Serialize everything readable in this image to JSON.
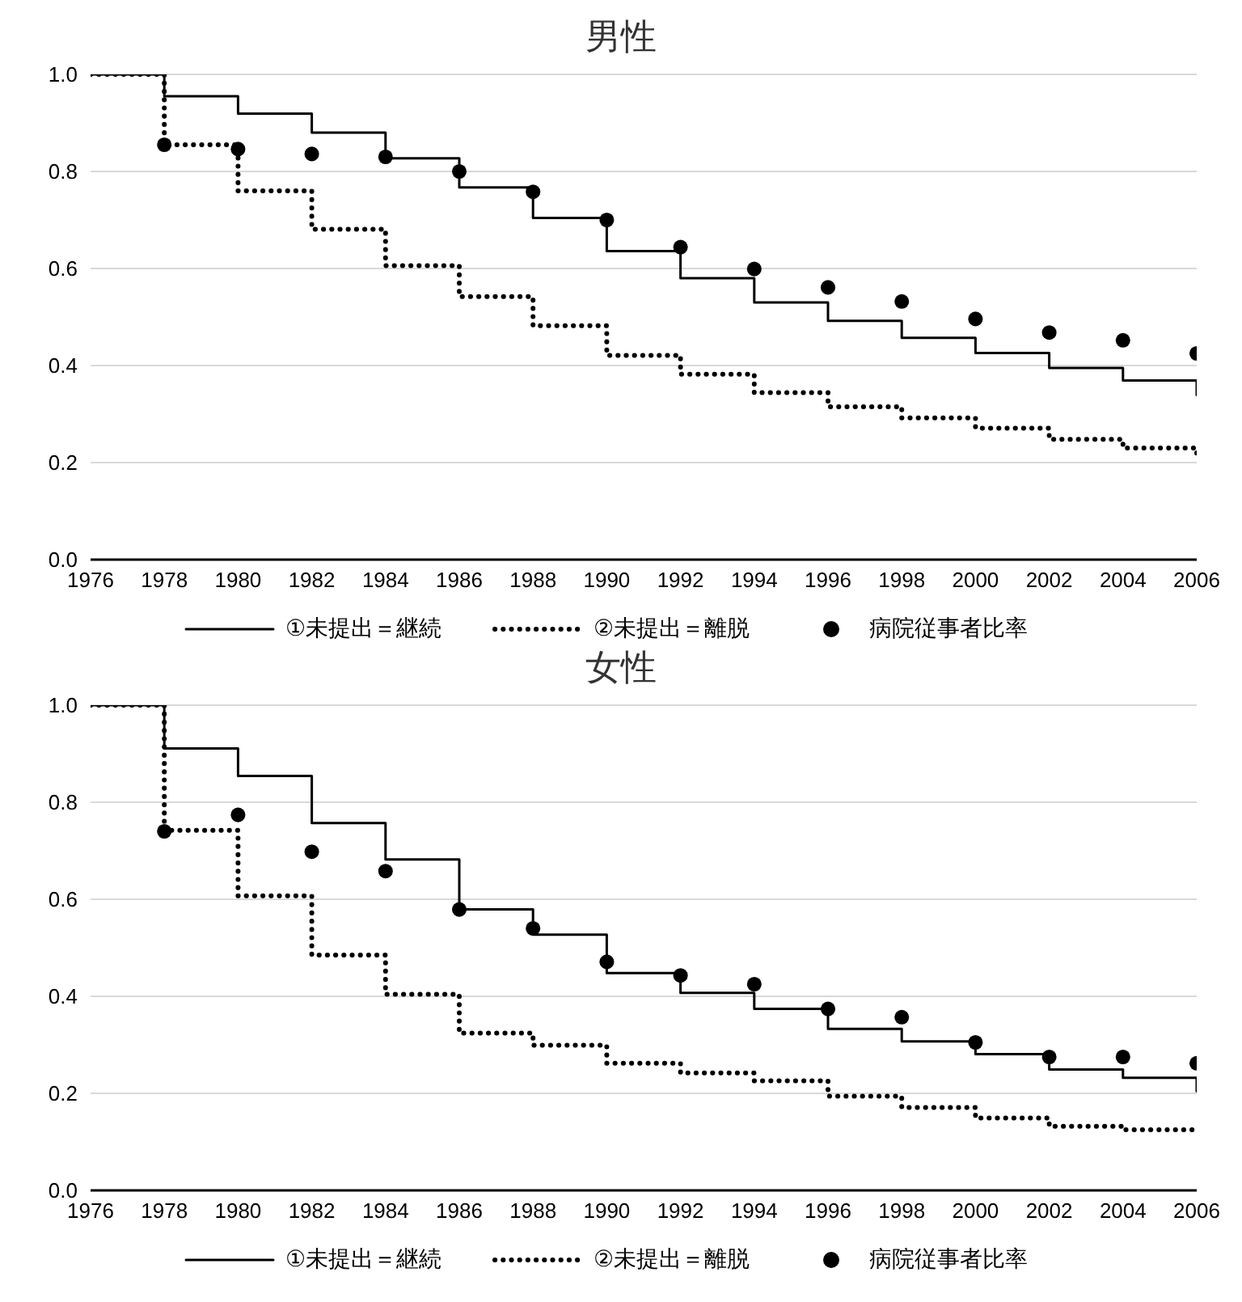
{
  "chart_data": [
    {
      "type": "step",
      "title": "男性",
      "x": [
        1976,
        1978,
        1980,
        1982,
        1984,
        1986,
        1988,
        1990,
        1992,
        1994,
        1996,
        1998,
        2000,
        2002,
        2004,
        2006
      ],
      "series": [
        {
          "name": "①未提出＝継続",
          "color": "#000000",
          "line_style": "solid",
          "values": [
            1.0,
            0.955,
            0.919,
            0.88,
            0.827,
            0.767,
            0.704,
            0.636,
            0.58,
            0.53,
            0.492,
            0.457,
            0.426,
            0.395,
            0.369,
            0.339
          ]
        },
        {
          "name": "②未提出＝離脱",
          "color": "#000000",
          "line_style": "dotted",
          "values": [
            1.0,
            0.855,
            0.76,
            0.681,
            0.606,
            0.542,
            0.482,
            0.421,
            0.382,
            0.344,
            0.315,
            0.292,
            0.271,
            0.248,
            0.23,
            0.213
          ]
        },
        {
          "name": "病院従事者比率",
          "type": "scatter",
          "color": "#000000",
          "marker": "circle",
          "x": [
            1978,
            1980,
            1982,
            1984,
            1986,
            1988,
            1990,
            1992,
            1994,
            1996,
            1998,
            2000,
            2002,
            2004,
            2006
          ],
          "values": [
            0.855,
            0.846,
            0.836,
            0.83,
            0.8,
            0.758,
            0.7,
            0.644,
            0.599,
            0.561,
            0.532,
            0.496,
            0.468,
            0.452,
            0.425
          ]
        }
      ],
      "xlim": [
        1976,
        2006
      ],
      "xticks": [
        1976,
        1978,
        1980,
        1982,
        1984,
        1986,
        1988,
        1990,
        1992,
        1994,
        1996,
        1998,
        2000,
        2002,
        2004,
        2006
      ],
      "ylim": [
        0,
        1
      ],
      "yticks": [
        {
          "value": 0,
          "label": "0.0"
        },
        {
          "value": 0.2,
          "label": "0.2"
        },
        {
          "value": 0.4,
          "label": "0.4"
        },
        {
          "value": 0.6,
          "label": "0.6"
        },
        {
          "value": 0.8,
          "label": "0.8"
        },
        {
          "value": 1,
          "label": "1.0"
        }
      ],
      "grid": "y",
      "legend": "bottom"
    },
    {
      "type": "step",
      "title": "女性",
      "x": [
        1976,
        1978,
        1980,
        1982,
        1984,
        1986,
        1988,
        1990,
        1992,
        1994,
        1996,
        1998,
        2000,
        2002,
        2004,
        2006
      ],
      "series": [
        {
          "name": "①未提出＝継続",
          "color": "#000000",
          "line_style": "solid",
          "values": [
            1.0,
            0.911,
            0.854,
            0.757,
            0.682,
            0.579,
            0.527,
            0.448,
            0.407,
            0.374,
            0.333,
            0.307,
            0.281,
            0.249,
            0.232,
            0.204
          ]
        },
        {
          "name": "②未提出＝離脱",
          "color": "#000000",
          "line_style": "dotted",
          "values": [
            1.0,
            0.742,
            0.607,
            0.485,
            0.404,
            0.324,
            0.299,
            0.262,
            0.242,
            0.226,
            0.194,
            0.171,
            0.149,
            0.132,
            0.125,
            0.124
          ]
        },
        {
          "name": "病院従事者比率",
          "type": "scatter",
          "color": "#000000",
          "marker": "circle",
          "x": [
            1978,
            1980,
            1982,
            1984,
            1986,
            1988,
            1990,
            1992,
            1994,
            1996,
            1998,
            2000,
            2002,
            2004,
            2006
          ],
          "values": [
            0.74,
            0.774,
            0.698,
            0.658,
            0.579,
            0.54,
            0.471,
            0.443,
            0.425,
            0.374,
            0.357,
            0.305,
            0.275,
            0.275,
            0.262
          ]
        }
      ],
      "xlim": [
        1976,
        2006
      ],
      "xticks": [
        1976,
        1978,
        1980,
        1982,
        1984,
        1986,
        1988,
        1990,
        1992,
        1994,
        1996,
        1998,
        2000,
        2002,
        2004,
        2006
      ],
      "ylim": [
        0,
        1
      ],
      "yticks": [
        {
          "value": 0,
          "label": "0.0"
        },
        {
          "value": 0.2,
          "label": "0.2"
        },
        {
          "value": 0.4,
          "label": "0.4"
        },
        {
          "value": 0.6,
          "label": "0.6"
        },
        {
          "value": 0.8,
          "label": "0.8"
        },
        {
          "value": 1,
          "label": "1.0"
        }
      ],
      "grid": "y",
      "legend": "bottom"
    }
  ]
}
